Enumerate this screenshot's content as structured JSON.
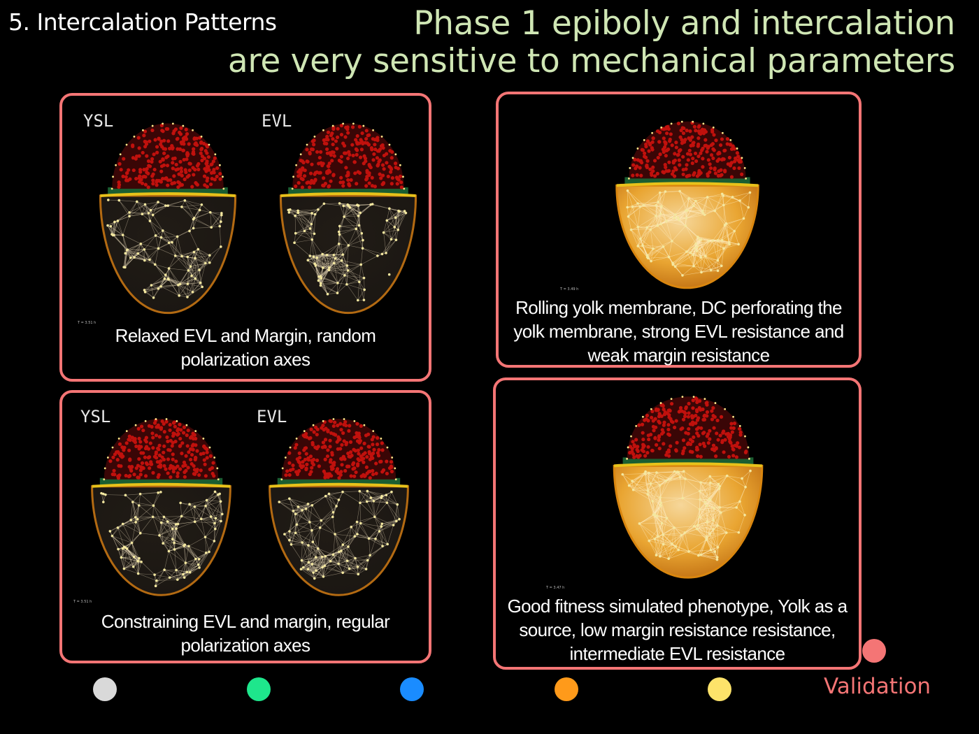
{
  "header": {
    "section": "5. Intercalation Patterns",
    "title_line1": "Phase 1 epiboly and intercalation",
    "title_line2": "are very sensitive to mechanical parameters"
  },
  "panels": [
    {
      "labels": [
        "YSL",
        "EVL"
      ],
      "timestamp": "T = 3.51 h",
      "caption_line1": "Relaxed EVL and Margin, random",
      "caption_line2": "polarization axes"
    },
    {
      "labels": [
        "YSL",
        "EVL"
      ],
      "timestamp": "T = 3.51 h",
      "caption_line1": "Constraining EVL and margin, regular",
      "caption_line2": "polarization axes"
    },
    {
      "timestamp": "T = 3.49 h",
      "caption_line1": "Rolling yolk membrane, DC perforating the",
      "caption_line2": "yolk membrane, strong EVL resistance and",
      "caption_line3": "weak margin resistance"
    },
    {
      "timestamp": "T = 3.47 h",
      "caption_line1": "Good fitness simulated phenotype, Yolk as a",
      "caption_line2": "source, low margin resistance resistance,",
      "caption_line3": "intermediate EVL resistance"
    }
  ],
  "legend": {
    "dots": [
      {
        "color": "#d9d9d9",
        "name": "grey-dot"
      },
      {
        "color": "#1ee68c",
        "name": "green-dot"
      },
      {
        "color": "#1a8cff",
        "name": "blue-dot"
      },
      {
        "color": "#ff9a1a",
        "name": "orange-dot"
      },
      {
        "color": "#fde36a",
        "name": "yellow-dot"
      },
      {
        "color": "#f47575",
        "name": "red-dot"
      }
    ],
    "validation_label": "Validation"
  },
  "colors": {
    "panel_border": "#f47575",
    "title": "#cfe6b4",
    "cap_cells": "#c0110d",
    "margin_band": "#e8c21a",
    "yolk_dark": "#1a1612",
    "yolk_bright": "#e9a532",
    "nodes": "#f4e8a0"
  }
}
